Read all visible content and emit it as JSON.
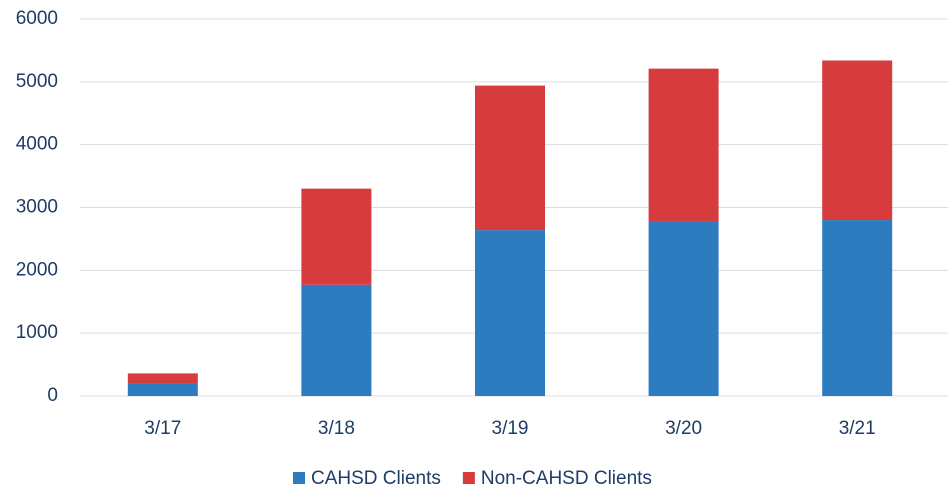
{
  "chart_data": {
    "type": "stacked_bar",
    "categories": [
      "3/17",
      "3/18",
      "3/19",
      "3/20",
      "3/21"
    ],
    "series": [
      {
        "name": "CAHSD Clients",
        "color": "#2e7cc0",
        "values": [
          200,
          1770,
          2640,
          2770,
          2800
        ]
      },
      {
        "name": "Non-CAHSD Clients",
        "color": "#d63b3d",
        "values": [
          160,
          1530,
          2300,
          2440,
          2540
        ]
      }
    ],
    "ylim": [
      0,
      6000
    ],
    "yticks": [
      0,
      1000,
      2000,
      3000,
      4000,
      5000,
      6000
    ],
    "grid": true,
    "legend": "bottom"
  }
}
